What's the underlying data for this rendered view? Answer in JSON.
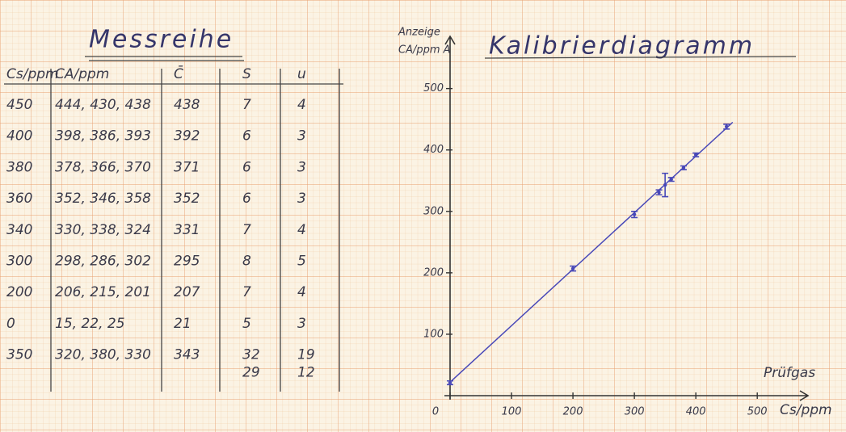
{
  "table": {
    "title": "Messreihe",
    "headers": [
      "Cs/ppm",
      "CA/ppm",
      "C̄",
      "S",
      "u"
    ],
    "rows": [
      [
        "450",
        "444, 430, 438",
        "438",
        "7",
        "4"
      ],
      [
        "400",
        "398, 386, 393",
        "392",
        "6",
        "3"
      ],
      [
        "380",
        "378, 366, 370",
        "371",
        "6",
        "3"
      ],
      [
        "360",
        "352, 346, 358",
        "352",
        "6",
        "3"
      ],
      [
        "340",
        "330, 338, 324",
        "331",
        "7",
        "4"
      ],
      [
        "300",
        "298, 286, 302",
        "295",
        "8",
        "5"
      ],
      [
        "200",
        "206, 215, 201",
        "207",
        "7",
        "4"
      ],
      [
        "0",
        "15, 22, 25",
        "21",
        "5",
        "3"
      ],
      [
        "350",
        "320, 380, 330",
        "343",
        [
          "32",
          "29"
        ],
        [
          "19",
          "12"
        ]
      ]
    ]
  },
  "chart_data": {
    "type": "scatter",
    "title": "Kalibrierdiagramm",
    "y_label": "Anzeige",
    "y_unit": "CA/ppm A",
    "x_label": "Prüfgas",
    "x_unit": "Cs/ppm",
    "x": [
      0,
      200,
      300,
      340,
      350,
      360,
      380,
      400,
      450
    ],
    "y": [
      21,
      207,
      295,
      331,
      343,
      352,
      371,
      392,
      438
    ],
    "errors": [
      3,
      4,
      5,
      4,
      19,
      3,
      3,
      3,
      4
    ],
    "color": "#4848b8",
    "line": {
      "x": [
        0,
        460
      ],
      "y": [
        22,
        445
      ]
    },
    "xlim": [
      0,
      530
    ],
    "ylim": [
      0,
      560
    ],
    "xticks": [
      0,
      100,
      200,
      300,
      400,
      500
    ],
    "yticks": [
      100,
      200,
      300,
      400,
      500
    ]
  }
}
